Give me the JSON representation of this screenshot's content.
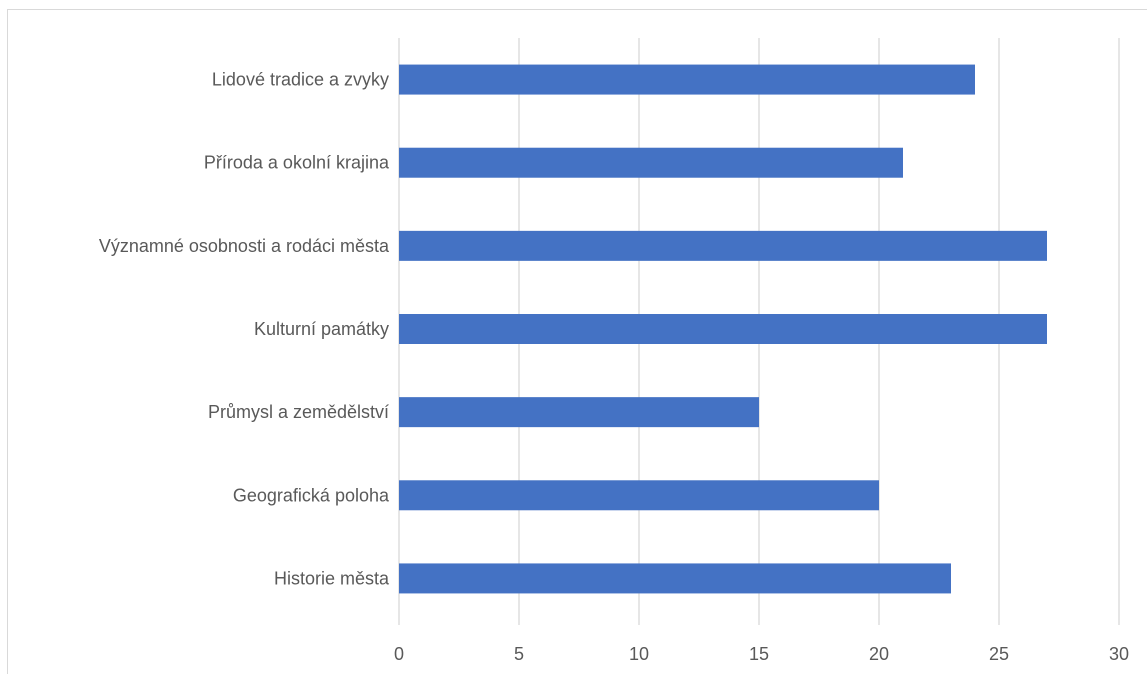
{
  "chart_data": {
    "type": "bar",
    "orientation": "horizontal",
    "categories": [
      "Lidové tradice a zvyky",
      "Příroda a okolní krajina",
      "Významné osobnosti a rodáci města",
      "Kulturní památky",
      "Průmysl a zemědělství",
      "Geografická poloha",
      "Historie města"
    ],
    "values": [
      24,
      21,
      27,
      27,
      15,
      20,
      23
    ],
    "xlim": [
      0,
      30
    ],
    "xticks": [
      "0",
      "5",
      "10",
      "15",
      "20",
      "25",
      "30"
    ],
    "grid": true,
    "bar_color": "#4472c4",
    "title": "",
    "xlabel": "",
    "ylabel": ""
  }
}
